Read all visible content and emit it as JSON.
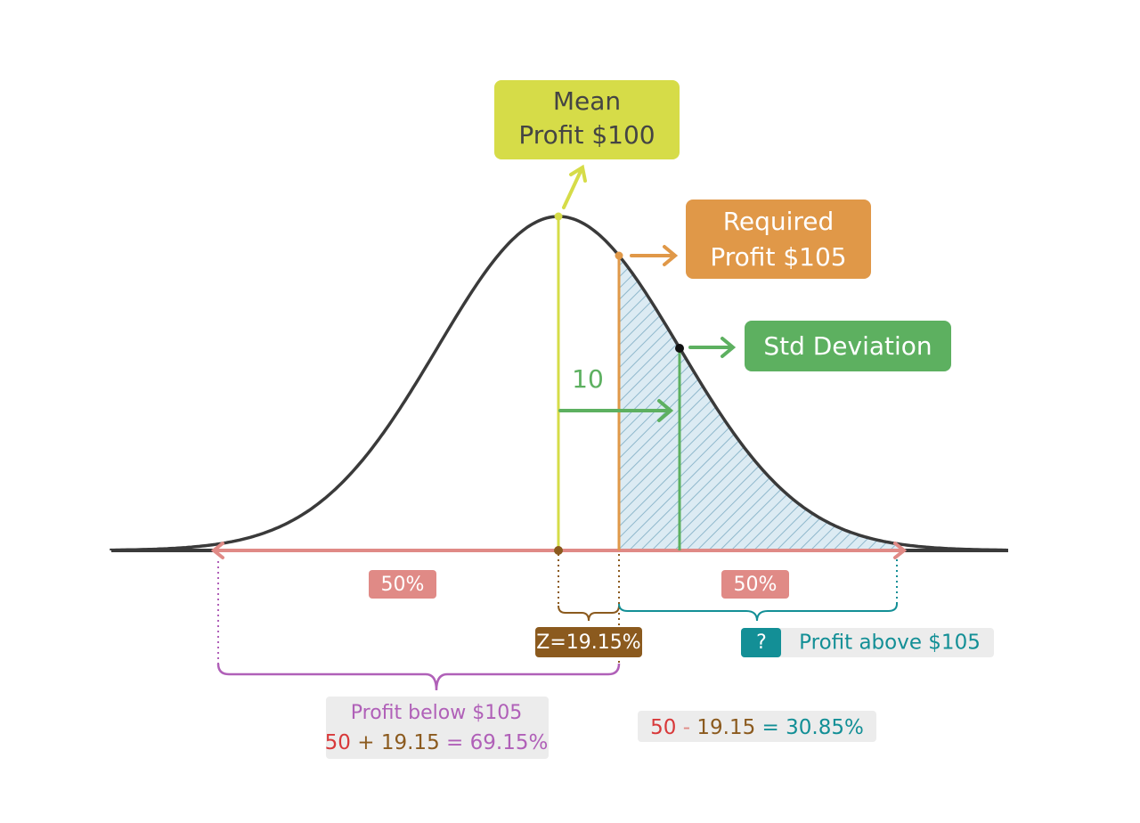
{
  "mean_box": {
    "lines": [
      "Mean",
      "Profit $100"
    ]
  },
  "required_box": {
    "lines": [
      "Required",
      "Profit $105"
    ]
  },
  "std_box": {
    "label": "Std Deviation"
  },
  "std_value": "10",
  "left_share": "50%",
  "right_share": "50%",
  "z_box": "Z=19.15%",
  "above": {
    "badge": "?",
    "label": "Profit above $105",
    "equation": [
      "50",
      "-",
      "19.15",
      "=",
      "30.85%"
    ]
  },
  "below": {
    "label": "Profit below $105",
    "equation": [
      "50",
      "+",
      "19.15",
      "=",
      "69.15%"
    ]
  }
}
